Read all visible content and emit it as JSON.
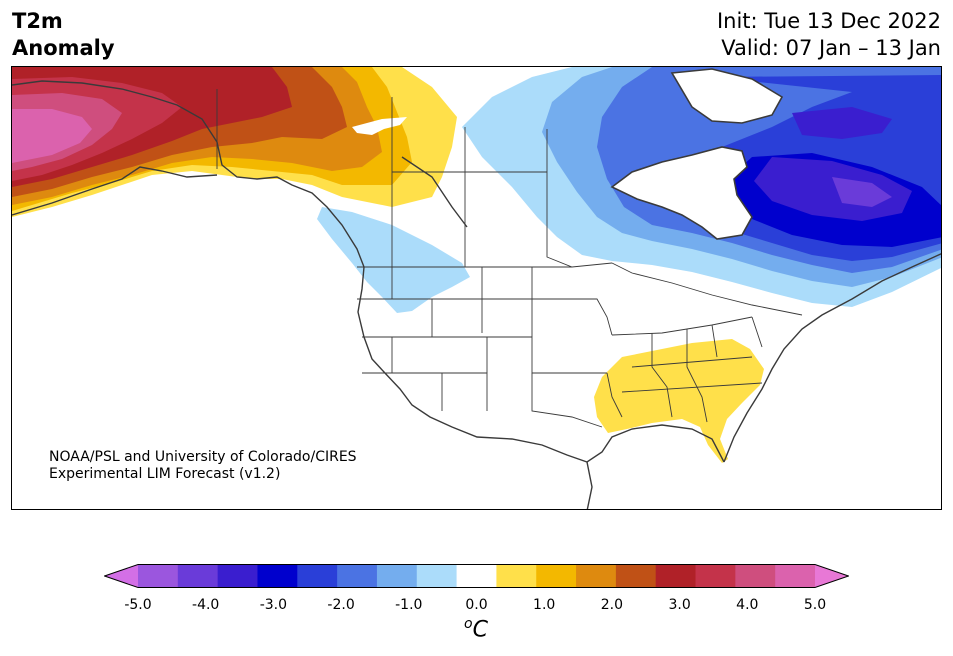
{
  "header": {
    "title_line1": "T2m",
    "title_line2": "Anomaly",
    "init": "Init: Tue 13 Dec 2022",
    "valid": "Valid: 07 Jan – 13 Jan"
  },
  "credit": {
    "line1": "NOAA/PSL and University of Colorado/CIRES",
    "line2": "Experimental LIM Forecast (v1.2)"
  },
  "colorbar": {
    "colors": [
      "#d36fe6",
      "#9b56de",
      "#6a3bd9",
      "#3a1ecf",
      "#0000cd",
      "#2a3fd8",
      "#4b73e3",
      "#74adee",
      "#abdcfa",
      "#ffffff",
      "#ffe04a",
      "#f3b800",
      "#de8a0f",
      "#c05116",
      "#b02128",
      "#c4334a",
      "#cf4e7e",
      "#db62ad",
      "#e878d6"
    ],
    "ticks": [
      "-5.0",
      "-4.0",
      "-3.0",
      "-2.0",
      "-1.0",
      "0.0",
      "1.0",
      "2.0",
      "3.0",
      "4.0",
      "5.0"
    ],
    "units_base": "C",
    "units_sup": "o"
  },
  "map": {
    "region": "North America"
  }
}
